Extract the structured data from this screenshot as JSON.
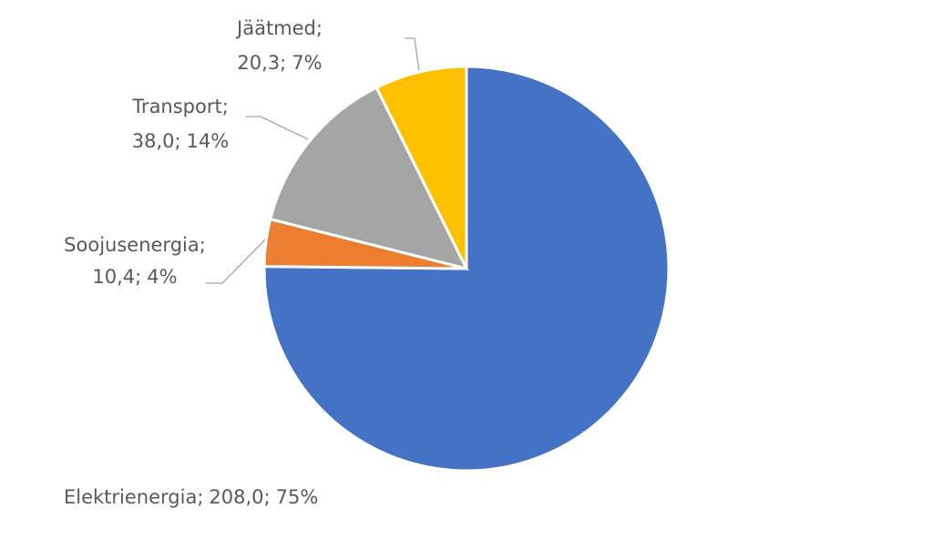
{
  "chart_data": {
    "type": "pie",
    "categories": [
      "Elektrienergia",
      "Soojusenergia",
      "Transport",
      "Jäätmed"
    ],
    "values": [
      208.0,
      10.4,
      38.0,
      20.3
    ],
    "value_labels": [
      "208,0",
      "10,4",
      "38,0",
      "20,3"
    ],
    "percent_labels": [
      "75%",
      "4%",
      "14%",
      "7%"
    ],
    "label_separator": ";",
    "colors": [
      "#4472c4",
      "#ed7d31",
      "#a5a5a5",
      "#ffc000"
    ]
  }
}
